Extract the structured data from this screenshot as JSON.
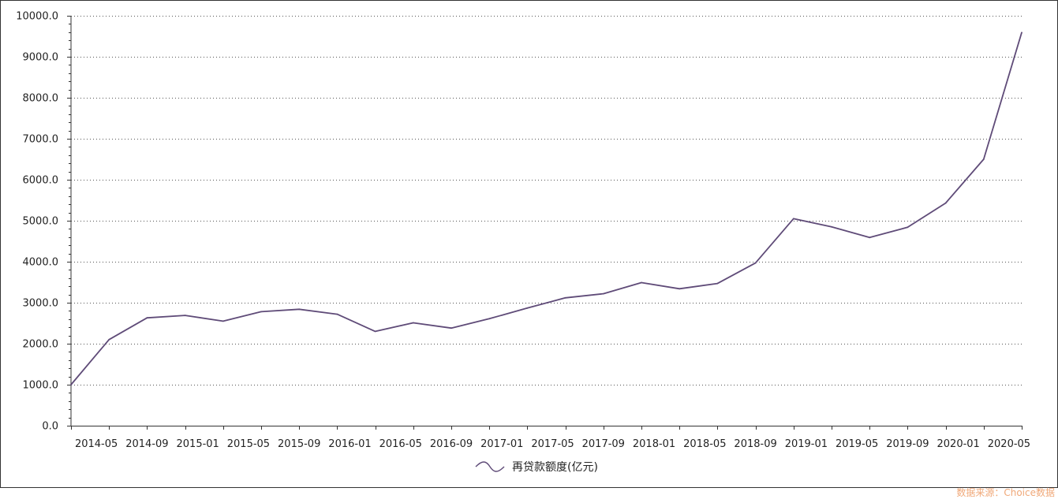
{
  "chart_data": {
    "type": "line",
    "series": [
      {
        "name": "再贷款额度(亿元)",
        "color": "#5f4b78",
        "points": [
          [
            "2014-03",
            1000
          ],
          [
            "2014-06",
            2100
          ],
          [
            "2014-09",
            2630
          ],
          [
            "2014-12",
            2690
          ],
          [
            "2015-03",
            2550
          ],
          [
            "2015-06",
            2780
          ],
          [
            "2015-09",
            2840
          ],
          [
            "2015-12",
            2720
          ],
          [
            "2016-03",
            2300
          ],
          [
            "2016-06",
            2510
          ],
          [
            "2016-09",
            2380
          ],
          [
            "2016-12",
            2610
          ],
          [
            "2017-03",
            2870
          ],
          [
            "2017-06",
            3120
          ],
          [
            "2017-09",
            3220
          ],
          [
            "2017-12",
            3490
          ],
          [
            "2018-03",
            3340
          ],
          [
            "2018-06",
            3470
          ],
          [
            "2018-09",
            3970
          ],
          [
            "2018-12",
            5050
          ],
          [
            "2019-03",
            4850
          ],
          [
            "2019-06",
            4590
          ],
          [
            "2019-09",
            4840
          ],
          [
            "2019-12",
            5430
          ],
          [
            "2020-03",
            6500
          ],
          [
            "2020-06",
            9590
          ]
        ]
      }
    ],
    "x_tick_labels": [
      "2014-05",
      "2014-09",
      "2015-01",
      "2015-05",
      "2015-09",
      "2016-01",
      "2016-05",
      "2016-09",
      "2017-01",
      "2017-05",
      "2017-09",
      "2018-01",
      "2018-05",
      "2018-09",
      "2019-01",
      "2019-05",
      "2019-09",
      "2020-01",
      "2020-05"
    ],
    "y_tick_labels": [
      "0.0",
      "1000.0",
      "2000.0",
      "3000.0",
      "4000.0",
      "5000.0",
      "6000.0",
      "7000.0",
      "8000.0",
      "9000.0",
      "10000.0"
    ],
    "ylim": [
      0,
      10000
    ],
    "grid": "horizontal-dotted",
    "legend_position": "bottom-center"
  },
  "source_note": "数据来源：Choice数据"
}
